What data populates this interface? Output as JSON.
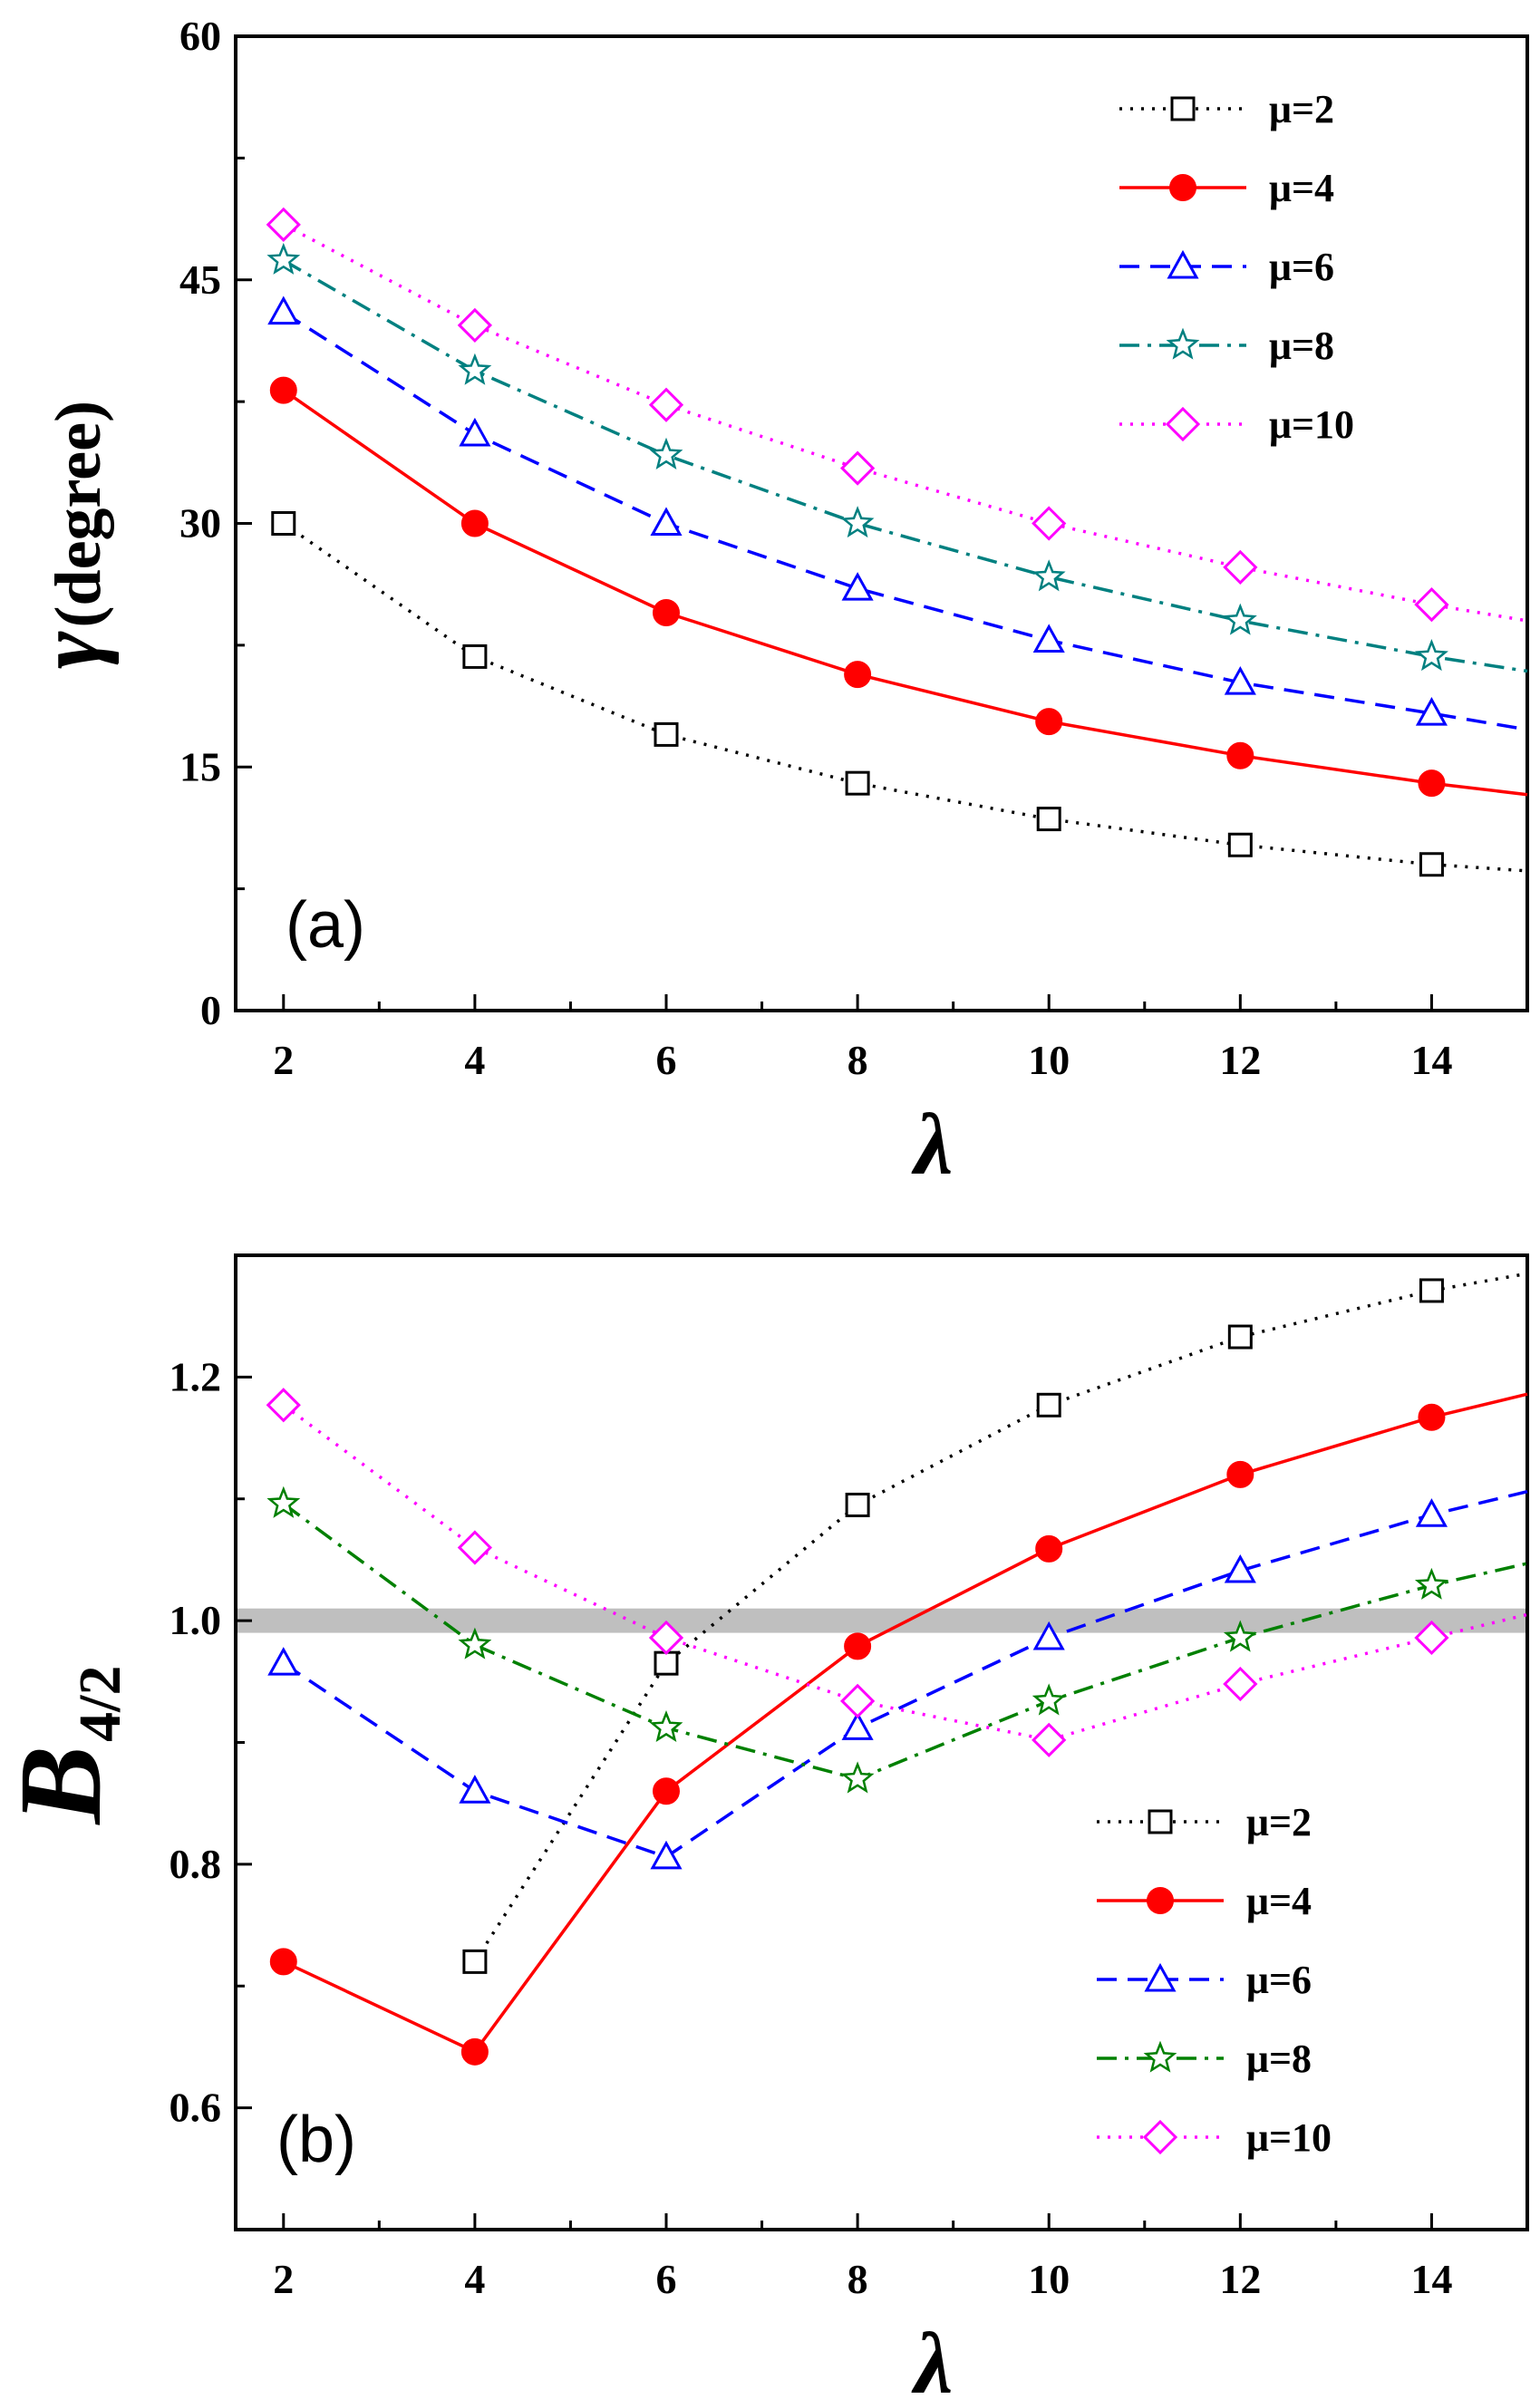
{
  "chart_data": [
    {
      "type": "line",
      "panel_label": "(a)",
      "ylabel_symbol": "γ",
      "ylabel_text": "(degree)",
      "xlabel": "λ",
      "xlim": [
        1.5,
        15
      ],
      "ylim": [
        0,
        60
      ],
      "xticks": [
        2,
        4,
        6,
        8,
        10,
        12,
        14
      ],
      "yticks": [
        0,
        15,
        30,
        45,
        60
      ],
      "legend_position": "top-right",
      "series": [
        {
          "name": "μ=2",
          "color": "#000000",
          "marker": "square",
          "line": "dotted",
          "x": [
            2,
            4,
            6,
            8,
            10,
            12,
            14,
            15
          ],
          "y": [
            30,
            21.8,
            17,
            14,
            11.8,
            10.2,
            9,
            8.6
          ],
          "marker_count": 7
        },
        {
          "name": "μ=4",
          "color": "#ff0000",
          "marker": "circle",
          "line": "solid",
          "x": [
            2,
            4,
            6,
            8,
            10,
            12,
            14,
            15
          ],
          "y": [
            38.2,
            30,
            24.5,
            20.7,
            17.8,
            15.7,
            14,
            13.3
          ],
          "marker_count": 7
        },
        {
          "name": "μ=6",
          "color": "#0000ff",
          "marker": "triangle",
          "line": "dashed",
          "x": [
            2,
            4,
            6,
            8,
            10,
            12,
            14,
            15
          ],
          "y": [
            43,
            35.5,
            30,
            26,
            22.8,
            20.2,
            18.3,
            17.3
          ],
          "marker_count": 7
        },
        {
          "name": "μ=8",
          "color": "#008080",
          "marker": "star",
          "line": "dashdot",
          "x": [
            2,
            4,
            6,
            8,
            10,
            12,
            14,
            15
          ],
          "y": [
            46.2,
            39.4,
            34.2,
            30,
            26.7,
            24,
            21.8,
            20.9
          ],
          "marker_count": 7
        },
        {
          "name": "μ=10",
          "color": "#ff00ff",
          "marker": "diamond",
          "line": "dotted",
          "x": [
            2,
            4,
            6,
            8,
            10,
            12,
            14,
            15
          ],
          "y": [
            48.4,
            42.2,
            37.3,
            33.4,
            30,
            27.3,
            25,
            24
          ],
          "marker_count": 7
        }
      ]
    },
    {
      "type": "line",
      "panel_label": "(b)",
      "ylabel_symbol": "B",
      "ylabel_subscript": "4/2",
      "xlabel": "λ",
      "xlim": [
        1.5,
        15
      ],
      "ylim": [
        0.5,
        1.3
      ],
      "xticks": [
        2,
        4,
        6,
        8,
        10,
        12,
        14
      ],
      "yticks": [
        "0.6",
        "0.8",
        "1.0",
        "1.2"
      ],
      "reference_band": [
        0.99,
        1.01
      ],
      "legend_position": "bottom-right",
      "series": [
        {
          "name": "μ=2",
          "color": "#000000",
          "marker": "square",
          "line": "dotted",
          "x": [
            4,
            6,
            8,
            10,
            12,
            14,
            15
          ],
          "y": [
            0.72,
            0.965,
            1.095,
            1.177,
            1.233,
            1.271,
            1.285
          ],
          "marker_count": 6
        },
        {
          "name": "μ=4",
          "color": "#ff0000",
          "marker": "circle",
          "line": "solid",
          "x": [
            2,
            4,
            6,
            8,
            10,
            12,
            14,
            15
          ],
          "y": [
            0.72,
            0.646,
            0.86,
            0.979,
            1.059,
            1.12,
            1.167,
            1.186
          ],
          "marker_count": 7
        },
        {
          "name": "μ=6",
          "color": "#0000ff",
          "marker": "triangle",
          "line": "dashed",
          "x": [
            2,
            4,
            6,
            8,
            10,
            12,
            14,
            15
          ],
          "y": [
            0.965,
            0.86,
            0.806,
            0.912,
            0.986,
            1.041,
            1.087,
            1.106
          ],
          "marker_count": 7
        },
        {
          "name": "μ=8",
          "color": "#008000",
          "marker": "star",
          "line": "dashdot",
          "x": [
            2,
            4,
            6,
            8,
            10,
            12,
            14,
            15
          ],
          "y": [
            1.096,
            0.98,
            0.912,
            0.87,
            0.934,
            0.986,
            1.029,
            1.047
          ],
          "marker_count": 7
        },
        {
          "name": "μ=10",
          "color": "#ff00ff",
          "marker": "diamond",
          "line": "dotted",
          "x": [
            2,
            4,
            6,
            8,
            10,
            12,
            14,
            15
          ],
          "y": [
            1.177,
            1.06,
            0.986,
            0.934,
            0.902,
            0.948,
            0.986,
            1.005
          ],
          "marker_count": 7
        }
      ]
    }
  ]
}
